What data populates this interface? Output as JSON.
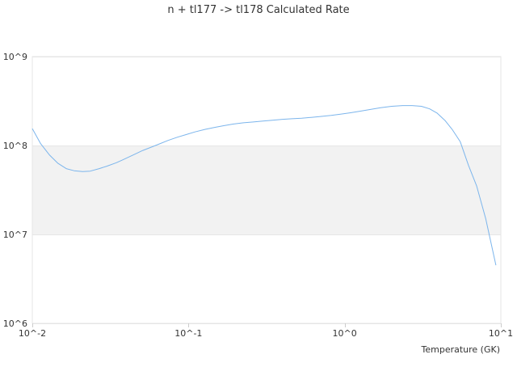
{
  "chart_data": {
    "type": "line",
    "title": "n + tl177 -> tl178 Calculated Rate",
    "xlabel": "Temperature (GK)",
    "ylabel": "",
    "x_scale": "log",
    "y_scale": "log",
    "xlim": [
      0.01,
      10
    ],
    "ylim": [
      1000000,
      1000000000
    ],
    "x_ticks": [
      {
        "value": 0.01,
        "label": "10^-2"
      },
      {
        "value": 0.1,
        "label": "10^-1"
      },
      {
        "value": 1,
        "label": "10^0"
      },
      {
        "value": 10,
        "label": "10^1"
      }
    ],
    "y_ticks": [
      {
        "value": 1000000,
        "label": "10^6"
      },
      {
        "value": 10000000,
        "label": "10^7"
      },
      {
        "value": 100000000,
        "label": "10^8"
      },
      {
        "value": 1000000000,
        "label": "10^9"
      }
    ],
    "grid": "horizontal",
    "band": {
      "from": 10000000,
      "to": 100000000,
      "color": "#f2f2f2"
    },
    "line_color": "#7cb5ec",
    "series": [
      {
        "x": [
          0.01,
          0.0113,
          0.0129,
          0.0146,
          0.0165,
          0.0185,
          0.021,
          0.0235,
          0.0268,
          0.03,
          0.0345,
          0.038,
          0.044,
          0.051,
          0.057,
          0.064,
          0.074,
          0.085,
          0.097,
          0.11,
          0.128,
          0.148,
          0.168,
          0.193,
          0.225,
          0.26,
          0.3,
          0.345,
          0.4,
          0.46,
          0.53,
          0.61,
          0.7,
          0.82,
          0.94,
          1.08,
          1.25,
          1.45,
          1.7,
          2.0,
          2.35,
          2.7,
          3.1,
          3.5,
          3.9,
          4.4,
          4.9,
          5.5,
          6.2,
          7.0,
          8.0,
          9.3
        ],
        "y": [
          155000000,
          105000000,
          78000000,
          63000000,
          55000000,
          52000000,
          51000000,
          51500000,
          55000000,
          58500000,
          64000000,
          69000000,
          78000000,
          88000000,
          95000000,
          103000000,
          114000000,
          124000000,
          133000000,
          142000000,
          152000000,
          160000000,
          167000000,
          174000000,
          180000000,
          184000000,
          188000000,
          192000000,
          197000000,
          200000000,
          203000000,
          207000000,
          212000000,
          218000000,
          225000000,
          233000000,
          243000000,
          254000000,
          266000000,
          276000000,
          281000000,
          281000000,
          276000000,
          258000000,
          232000000,
          190000000,
          150000000,
          110000000,
          60000000,
          35000000,
          15000000,
          4500000
        ]
      }
    ]
  }
}
